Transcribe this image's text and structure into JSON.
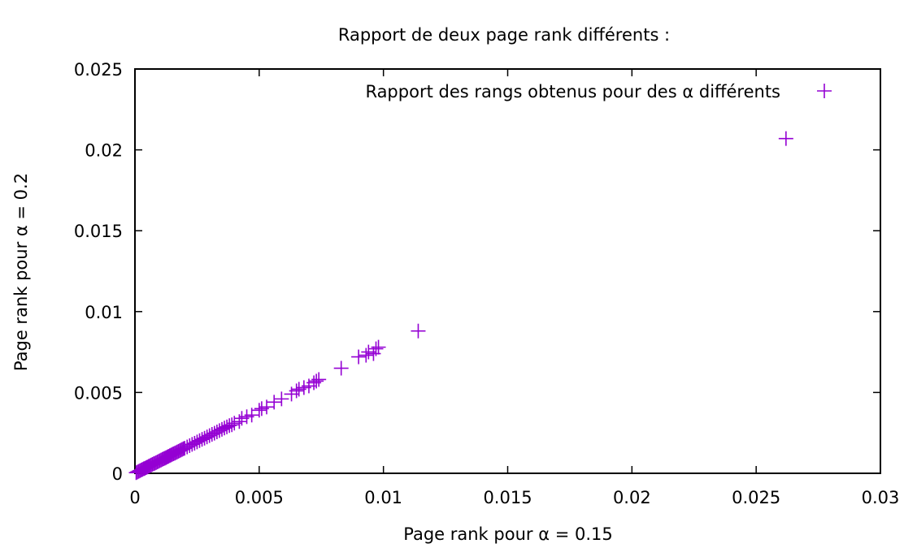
{
  "chart_data": {
    "type": "scatter",
    "title": "Rapport de deux page rank différents :",
    "xlabel": "Page rank pour α = 0.15",
    "ylabel": "Page rank pour α = 0.2",
    "xlim": [
      0,
      0.03
    ],
    "ylim": [
      0,
      0.025
    ],
    "x_ticks": [
      0,
      0.005,
      0.01,
      0.015,
      0.02,
      0.025,
      0.03
    ],
    "y_ticks": [
      0,
      0.005,
      0.01,
      0.015,
      0.02,
      0.025
    ],
    "x_tick_labels": [
      "0",
      "0.005",
      "0.01",
      "0.015",
      "0.02",
      "0.025",
      "0.03"
    ],
    "y_tick_labels": [
      "0",
      "0.005",
      "0.01",
      "0.015",
      "0.02",
      "0.025"
    ],
    "grid": false,
    "legend_position": "top-right",
    "marker": "plus",
    "color": "#9400d3",
    "series": [
      {
        "name": "Rapport des rangs obtenus pour des α différents",
        "points": [
          [
            5e-05,
            4e-05
          ],
          [
            0.0001,
            8e-05
          ],
          [
            0.00015,
            0.00012
          ],
          [
            0.0002,
            0.00016
          ],
          [
            0.00025,
            0.0002
          ],
          [
            0.0003,
            0.00024
          ],
          [
            0.00035,
            0.00028
          ],
          [
            0.0004,
            0.00031
          ],
          [
            0.00045,
            0.00035
          ],
          [
            0.0005,
            0.00039
          ],
          [
            0.00055,
            0.00043
          ],
          [
            0.0006,
            0.00047
          ],
          [
            0.00065,
            0.00051
          ],
          [
            0.0007,
            0.00055
          ],
          [
            0.00075,
            0.00059
          ],
          [
            0.0008,
            0.00062
          ],
          [
            0.00085,
            0.00066
          ],
          [
            0.0009,
            0.0007
          ],
          [
            0.00095,
            0.00074
          ],
          [
            0.001,
            0.00078
          ],
          [
            0.00105,
            0.00082
          ],
          [
            0.0011,
            0.00086
          ],
          [
            0.00115,
            0.0009
          ],
          [
            0.0012,
            0.00093
          ],
          [
            0.00125,
            0.00097
          ],
          [
            0.0013,
            0.00101
          ],
          [
            0.00135,
            0.00105
          ],
          [
            0.0014,
            0.00109
          ],
          [
            0.00145,
            0.00113
          ],
          [
            0.0015,
            0.00117
          ],
          [
            0.00155,
            0.00121
          ],
          [
            0.0016,
            0.00124
          ],
          [
            0.00165,
            0.00128
          ],
          [
            0.0017,
            0.00132
          ],
          [
            0.00175,
            0.00136
          ],
          [
            0.0018,
            0.0014
          ],
          [
            0.00185,
            0.00144
          ],
          [
            0.0019,
            0.00148
          ],
          [
            0.00195,
            0.00152
          ],
          [
            0.002,
            0.00155
          ],
          [
            0.0021,
            0.00163
          ],
          [
            0.0022,
            0.00171
          ],
          [
            0.0023,
            0.00179
          ],
          [
            0.0024,
            0.00186
          ],
          [
            0.0025,
            0.00194
          ],
          [
            0.0026,
            0.00202
          ],
          [
            0.0027,
            0.0021
          ],
          [
            0.0028,
            0.00217
          ],
          [
            0.0029,
            0.00225
          ],
          [
            0.003,
            0.00233
          ],
          [
            0.0031,
            0.00241
          ],
          [
            0.0032,
            0.00248
          ],
          [
            0.0033,
            0.00256
          ],
          [
            0.0034,
            0.00264
          ],
          [
            0.0035,
            0.00272
          ],
          [
            0.0036,
            0.0028
          ],
          [
            0.0037,
            0.00287
          ],
          [
            0.0038,
            0.00295
          ],
          [
            0.0039,
            0.003
          ],
          [
            0.004,
            0.0031
          ],
          [
            0.0042,
            0.0032
          ],
          [
            0.0043,
            0.0034
          ],
          [
            0.0045,
            0.0035
          ],
          [
            0.0047,
            0.0036
          ],
          [
            0.005,
            0.0039
          ],
          [
            0.0051,
            0.004
          ],
          [
            0.0053,
            0.0041
          ],
          [
            0.0056,
            0.0044
          ],
          [
            0.0059,
            0.0046
          ],
          [
            0.0063,
            0.0049
          ],
          [
            0.0065,
            0.0051
          ],
          [
            0.0066,
            0.0052
          ],
          [
            0.0068,
            0.0053
          ],
          [
            0.007,
            0.0054
          ],
          [
            0.0072,
            0.0056
          ],
          [
            0.0073,
            0.0057
          ],
          [
            0.0074,
            0.0058
          ],
          [
            0.0083,
            0.0065
          ],
          [
            0.009,
            0.0072
          ],
          [
            0.0093,
            0.0073
          ],
          [
            0.0094,
            0.0075
          ],
          [
            0.0096,
            0.0074
          ],
          [
            0.0097,
            0.0077
          ],
          [
            0.0098,
            0.0078
          ],
          [
            0.0114,
            0.0088
          ],
          [
            0.0262,
            0.0207
          ]
        ]
      }
    ]
  }
}
